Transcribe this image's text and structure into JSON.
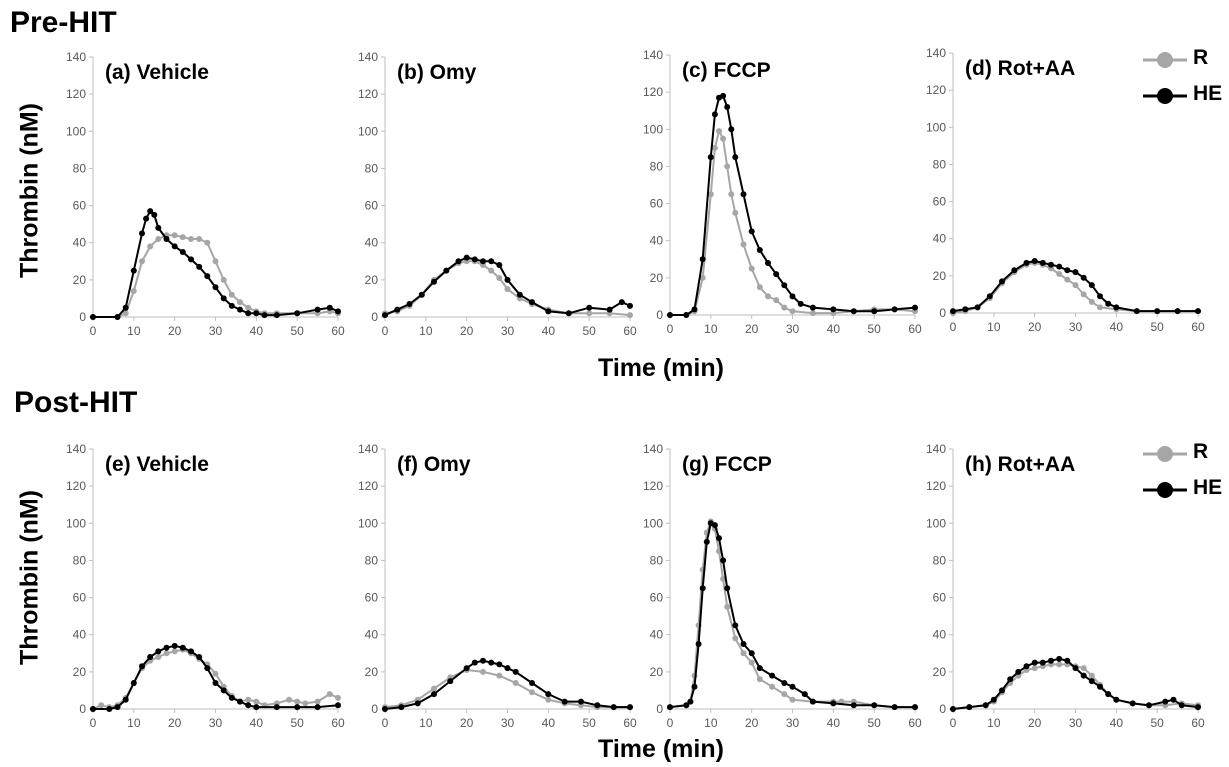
{
  "sections": {
    "pre": "Pre-HIT",
    "post": "Post-HIT"
  },
  "y_axis_label": "Thrombin (nM)",
  "x_axis_label": "Time (min)",
  "legend": {
    "r_label": "R",
    "he_label": "HE"
  },
  "colors": {
    "R": "#a6a6a6",
    "HE": "#000000",
    "axis": "#bfbfbf",
    "tick_text": "#595959"
  },
  "chart_data": [
    {
      "id": "a",
      "type": "line",
      "title": "(a) Vehicle",
      "xlim": [
        0,
        60
      ],
      "ylim": [
        0,
        140
      ],
      "xticks": [
        0,
        10,
        20,
        30,
        40,
        50,
        60
      ],
      "yticks": [
        0,
        20,
        40,
        60,
        80,
        100,
        120,
        140
      ],
      "series": [
        {
          "name": "R",
          "x": [
            0,
            6,
            8,
            10,
            12,
            14,
            16,
            18,
            20,
            22,
            24,
            26,
            28,
            30,
            32,
            34,
            36,
            38,
            40,
            42,
            45,
            50,
            55,
            58,
            60
          ],
          "values": [
            0,
            0,
            2,
            14,
            30,
            38,
            42,
            44,
            44,
            43,
            42,
            42,
            40,
            30,
            20,
            12,
            8,
            5,
            3,
            2,
            2,
            2,
            2,
            3,
            2
          ]
        },
        {
          "name": "HE",
          "x": [
            0,
            6,
            8,
            10,
            12,
            13,
            14,
            15,
            16,
            18,
            20,
            22,
            24,
            26,
            28,
            30,
            32,
            34,
            36,
            38,
            40,
            42,
            45,
            50,
            55,
            58,
            60
          ],
          "values": [
            0,
            0,
            5,
            25,
            45,
            53,
            57,
            55,
            48,
            42,
            38,
            35,
            31,
            27,
            22,
            16,
            10,
            6,
            4,
            2,
            2,
            1,
            1,
            2,
            4,
            5,
            3
          ]
        }
      ]
    },
    {
      "id": "b",
      "type": "line",
      "title": "(b) Omy",
      "xlim": [
        0,
        60
      ],
      "ylim": [
        0,
        140
      ],
      "xticks": [
        0,
        10,
        20,
        30,
        40,
        50,
        60
      ],
      "yticks": [
        0,
        20,
        40,
        60,
        80,
        100,
        120,
        140
      ],
      "series": [
        {
          "name": "R",
          "x": [
            0,
            3,
            6,
            9,
            12,
            15,
            18,
            20,
            22,
            24,
            26,
            28,
            30,
            33,
            36,
            40,
            45,
            50,
            55,
            60
          ],
          "values": [
            2,
            3,
            6,
            12,
            20,
            25,
            29,
            30,
            30,
            28,
            25,
            21,
            15,
            10,
            7,
            4,
            2,
            2,
            2,
            1
          ]
        },
        {
          "name": "HE",
          "x": [
            0,
            3,
            6,
            9,
            12,
            15,
            18,
            20,
            22,
            24,
            26,
            28,
            30,
            33,
            36,
            40,
            45,
            50,
            55,
            58,
            60
          ],
          "values": [
            1,
            4,
            7,
            12,
            19,
            25,
            30,
            32,
            31,
            30,
            30,
            28,
            20,
            12,
            8,
            3,
            2,
            5,
            4,
            8,
            6
          ]
        }
      ]
    },
    {
      "id": "c",
      "type": "line",
      "title": "(c) FCCP",
      "xlim": [
        0,
        60
      ],
      "ylim": [
        0,
        140
      ],
      "xticks": [
        0,
        10,
        20,
        30,
        40,
        50,
        60
      ],
      "yticks": [
        0,
        20,
        40,
        60,
        80,
        100,
        120,
        140
      ],
      "series": [
        {
          "name": "R",
          "x": [
            0,
            4,
            6,
            8,
            10,
            11,
            12,
            13,
            14,
            15,
            16,
            18,
            20,
            22,
            24,
            26,
            28,
            30,
            35,
            40,
            45,
            50,
            55,
            60
          ],
          "values": [
            0,
            0,
            2,
            20,
            65,
            90,
            99,
            95,
            80,
            65,
            55,
            38,
            25,
            15,
            10,
            8,
            4,
            2,
            1,
            1,
            2,
            3,
            3,
            2
          ]
        },
        {
          "name": "HE",
          "x": [
            0,
            4,
            6,
            8,
            10,
            11,
            12,
            13,
            14,
            15,
            16,
            18,
            20,
            22,
            24,
            26,
            28,
            30,
            32,
            35,
            40,
            45,
            50,
            55,
            60
          ],
          "values": [
            0,
            0,
            3,
            30,
            85,
            108,
            117,
            118,
            112,
            100,
            85,
            65,
            45,
            35,
            28,
            22,
            16,
            10,
            6,
            4,
            3,
            2,
            2,
            3,
            4
          ]
        }
      ]
    },
    {
      "id": "d",
      "type": "line",
      "title": "(d) Rot+AA",
      "xlim": [
        0,
        60
      ],
      "ylim": [
        0,
        140
      ],
      "xticks": [
        0,
        10,
        20,
        30,
        40,
        50,
        60
      ],
      "yticks": [
        0,
        20,
        40,
        60,
        80,
        100,
        120,
        140
      ],
      "series": [
        {
          "name": "R",
          "x": [
            0,
            3,
            6,
            9,
            12,
            15,
            18,
            20,
            22,
            24,
            26,
            28,
            30,
            32,
            34,
            36,
            40,
            45,
            50,
            55,
            60
          ],
          "values": [
            0,
            1,
            3,
            8,
            16,
            22,
            26,
            27,
            26,
            24,
            21,
            18,
            15,
            10,
            6,
            3,
            2,
            1,
            1,
            1,
            1
          ]
        },
        {
          "name": "HE",
          "x": [
            0,
            3,
            6,
            9,
            12,
            15,
            18,
            20,
            22,
            24,
            26,
            28,
            30,
            32,
            34,
            36,
            38,
            40,
            45,
            50,
            55,
            60
          ],
          "values": [
            1,
            2,
            3,
            9,
            17,
            23,
            27,
            28,
            27,
            26,
            25,
            23,
            22,
            19,
            15,
            9,
            5,
            3,
            1,
            1,
            1,
            1
          ]
        }
      ]
    },
    {
      "id": "e",
      "type": "line",
      "title": "(e) Vehicle",
      "xlim": [
        0,
        60
      ],
      "ylim": [
        0,
        140
      ],
      "xticks": [
        0,
        10,
        20,
        30,
        40,
        50,
        60
      ],
      "yticks": [
        0,
        20,
        40,
        60,
        80,
        100,
        120,
        140
      ],
      "series": [
        {
          "name": "R",
          "x": [
            0,
            2,
            4,
            6,
            8,
            10,
            12,
            14,
            16,
            18,
            20,
            22,
            24,
            26,
            28,
            30,
            32,
            34,
            36,
            38,
            40,
            42,
            45,
            48,
            50,
            52,
            55,
            58,
            60
          ],
          "values": [
            0,
            2,
            1,
            2,
            6,
            14,
            22,
            26,
            28,
            30,
            31,
            32,
            30,
            27,
            24,
            19,
            12,
            7,
            4,
            5,
            4,
            2,
            3,
            5,
            4,
            3,
            4,
            8,
            6
          ]
        },
        {
          "name": "HE",
          "x": [
            0,
            4,
            6,
            8,
            10,
            12,
            14,
            16,
            18,
            20,
            22,
            24,
            26,
            28,
            30,
            32,
            34,
            36,
            38,
            40,
            45,
            50,
            55,
            60
          ],
          "values": [
            0,
            0,
            1,
            5,
            14,
            23,
            28,
            31,
            33,
            34,
            33,
            31,
            28,
            22,
            14,
            10,
            6,
            4,
            2,
            1,
            1,
            1,
            1,
            2
          ]
        }
      ]
    },
    {
      "id": "f",
      "type": "line",
      "title": "(f) Omy",
      "xlim": [
        0,
        60
      ],
      "ylim": [
        0,
        140
      ],
      "xticks": [
        0,
        10,
        20,
        30,
        40,
        50,
        60
      ],
      "yticks": [
        0,
        20,
        40,
        60,
        80,
        100,
        120,
        140
      ],
      "series": [
        {
          "name": "R",
          "x": [
            0,
            4,
            8,
            12,
            16,
            20,
            24,
            28,
            32,
            36,
            40,
            44,
            48,
            52,
            56,
            60
          ],
          "values": [
            1,
            2,
            5,
            11,
            17,
            21,
            20,
            18,
            14,
            9,
            5,
            3,
            2,
            1,
            1,
            1
          ]
        },
        {
          "name": "HE",
          "x": [
            0,
            4,
            8,
            12,
            16,
            20,
            22,
            24,
            26,
            28,
            30,
            32,
            36,
            40,
            44,
            48,
            52,
            56,
            60
          ],
          "values": [
            0,
            1,
            3,
            8,
            15,
            22,
            25,
            26,
            25,
            24,
            22,
            20,
            14,
            8,
            4,
            4,
            2,
            1,
            1
          ]
        }
      ]
    },
    {
      "id": "g",
      "type": "line",
      "title": "(g) FCCP",
      "xlim": [
        0,
        60
      ],
      "ylim": [
        0,
        140
      ],
      "xticks": [
        0,
        10,
        20,
        30,
        40,
        50,
        60
      ],
      "yticks": [
        0,
        20,
        40,
        60,
        80,
        100,
        120,
        140
      ],
      "series": [
        {
          "name": "R",
          "x": [
            0,
            4,
            5,
            6,
            7,
            8,
            9,
            10,
            11,
            12,
            13,
            14,
            16,
            18,
            20,
            22,
            25,
            28,
            30,
            35,
            40,
            42,
            45,
            50,
            55,
            60
          ],
          "values": [
            1,
            2,
            4,
            18,
            45,
            75,
            95,
            101,
            97,
            85,
            70,
            55,
            38,
            30,
            25,
            16,
            12,
            8,
            5,
            4,
            4,
            4,
            4,
            2,
            1,
            1
          ]
        },
        {
          "name": "HE",
          "x": [
            0,
            4,
            5,
            6,
            7,
            8,
            9,
            10,
            11,
            12,
            13,
            14,
            16,
            18,
            20,
            22,
            25,
            28,
            30,
            33,
            35,
            40,
            45,
            50,
            55,
            60
          ],
          "values": [
            1,
            2,
            4,
            12,
            35,
            65,
            90,
            100,
            99,
            92,
            80,
            65,
            45,
            35,
            30,
            22,
            18,
            14,
            12,
            8,
            4,
            3,
            2,
            2,
            1,
            1
          ]
        }
      ]
    },
    {
      "id": "h",
      "type": "line",
      "title": "(h) Rot+AA",
      "xlim": [
        0,
        60
      ],
      "ylim": [
        0,
        140
      ],
      "xticks": [
        0,
        10,
        20,
        30,
        40,
        50,
        60
      ],
      "yticks": [
        0,
        20,
        40,
        60,
        80,
        100,
        120,
        140
      ],
      "series": [
        {
          "name": "R",
          "x": [
            0,
            4,
            8,
            10,
            12,
            14,
            16,
            18,
            20,
            22,
            24,
            26,
            28,
            30,
            32,
            34,
            36,
            38,
            40,
            44,
            48,
            52,
            56,
            60
          ],
          "values": [
            0,
            1,
            2,
            4,
            9,
            14,
            18,
            21,
            22,
            23,
            24,
            24,
            24,
            23,
            22,
            18,
            13,
            8,
            5,
            3,
            2,
            2,
            3,
            2
          ]
        },
        {
          "name": "HE",
          "x": [
            0,
            4,
            8,
            10,
            12,
            14,
            16,
            18,
            20,
            22,
            24,
            26,
            28,
            30,
            32,
            34,
            36,
            38,
            40,
            44,
            48,
            52,
            54,
            56,
            60
          ],
          "values": [
            0,
            1,
            2,
            5,
            10,
            16,
            20,
            23,
            25,
            25,
            26,
            27,
            26,
            22,
            18,
            15,
            12,
            8,
            5,
            3,
            2,
            4,
            5,
            2,
            1
          ]
        }
      ]
    }
  ]
}
